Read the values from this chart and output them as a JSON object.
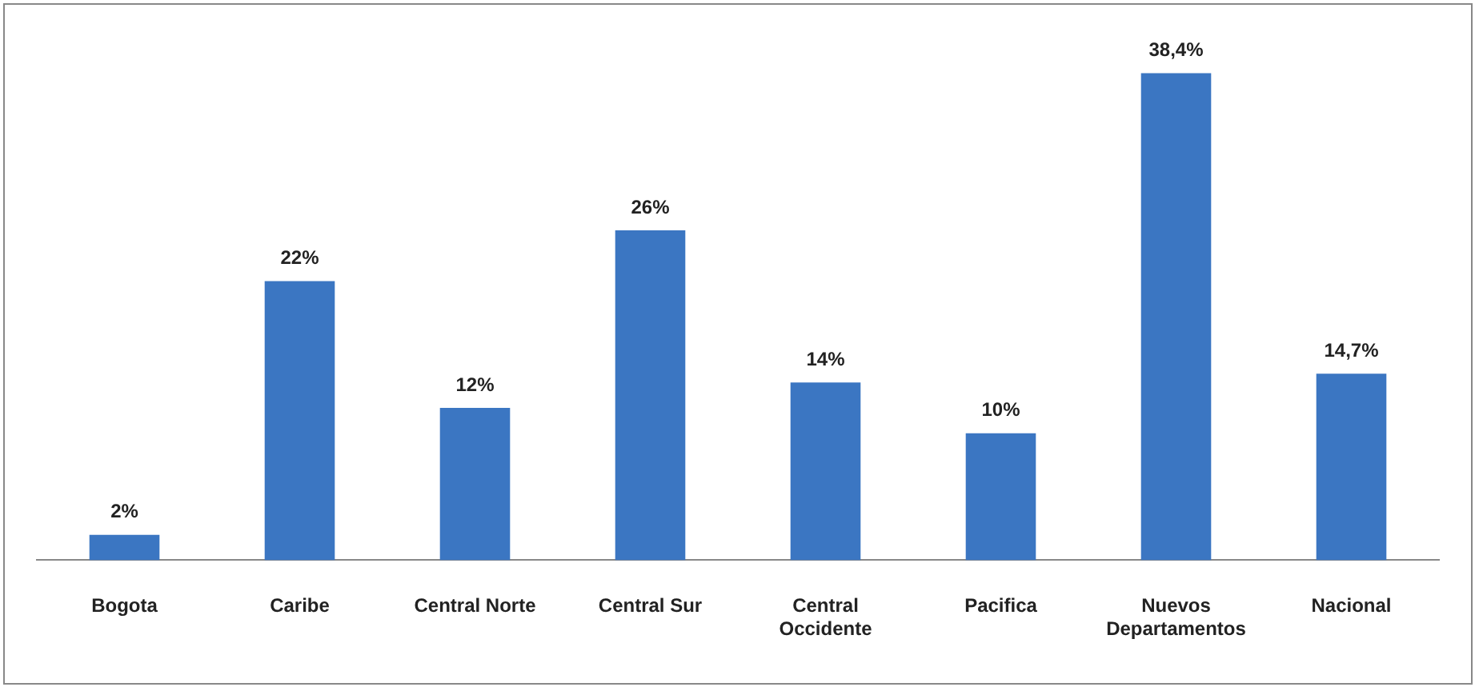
{
  "chart_data": {
    "type": "bar",
    "categories": [
      "Bogota",
      "Caribe",
      "Central Norte",
      "Central Sur",
      "Central Occidente",
      "Pacifica",
      "Nuevos Departamentos",
      "Nacional"
    ],
    "values": [
      2,
      22,
      12,
      26,
      14,
      10,
      38.4,
      14.7
    ],
    "color": "#3b76c2",
    "value_labels": [
      "2%",
      "22%",
      "12%",
      "26%",
      "14%",
      "10%",
      "38,4%",
      "14,7%"
    ],
    "grid": false,
    "legend": false,
    "tick_labels": "x"
  }
}
